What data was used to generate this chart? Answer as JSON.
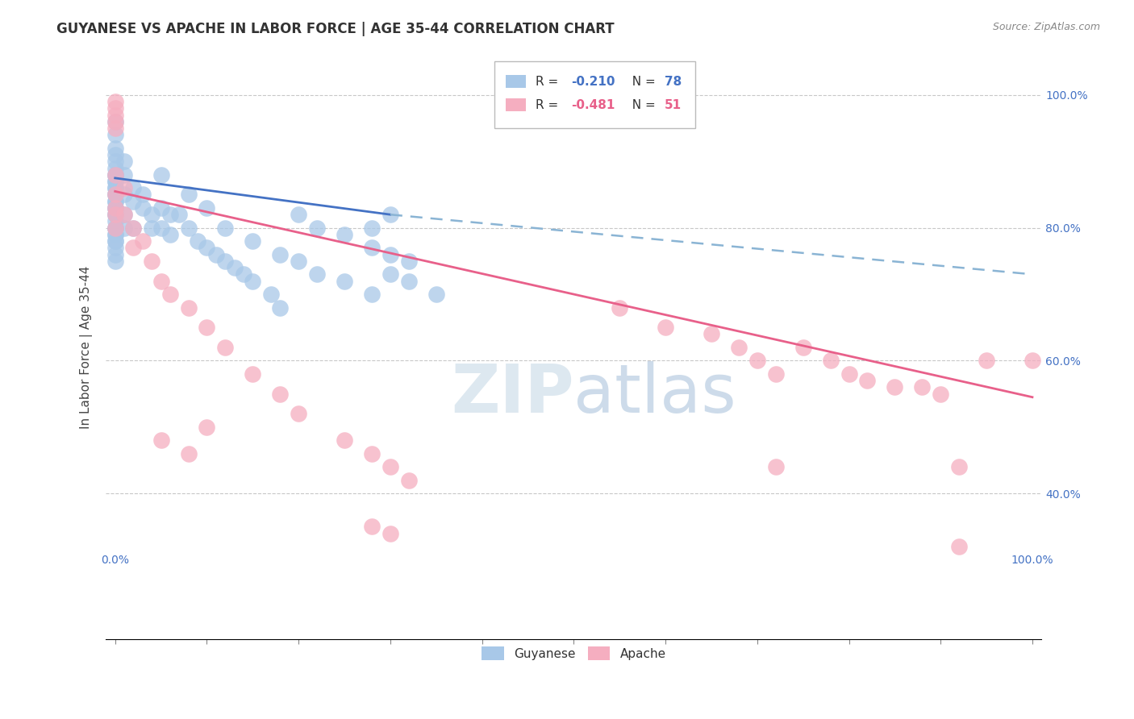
{
  "title": "GUYANESE VS APACHE IN LABOR FORCE | AGE 35-44 CORRELATION CHART",
  "source": "Source: ZipAtlas.com",
  "ylabel": "In Labor Force | Age 35-44",
  "xmin": -0.01,
  "xmax": 1.01,
  "ymin": 0.18,
  "ymax": 1.06,
  "guyanese_R": -0.21,
  "guyanese_N": 78,
  "apache_R": -0.481,
  "apache_N": 51,
  "guyanese_color": "#a8c8e8",
  "apache_color": "#f5aec0",
  "guyanese_line_color": "#4472c4",
  "apache_line_color": "#e8608a",
  "dash_line_color": "#8ab4d4",
  "background_color": "#ffffff",
  "watermark_color": "#dde8f0",
  "grid_color": "#c8c8c8",
  "tick_color": "#4472c4",
  "yticks": [
    0.4,
    0.6,
    0.8,
    1.0
  ],
  "xtick_labels_left": "0.0%",
  "xtick_labels_right": "100.0%",
  "guyanese_line_start_y": 0.875,
  "guyanese_line_end_y": 0.82,
  "apache_line_start_y": 0.855,
  "apache_line_end_y": 0.545,
  "dash_line_start_y": 0.875,
  "dash_line_end_y": 0.73
}
